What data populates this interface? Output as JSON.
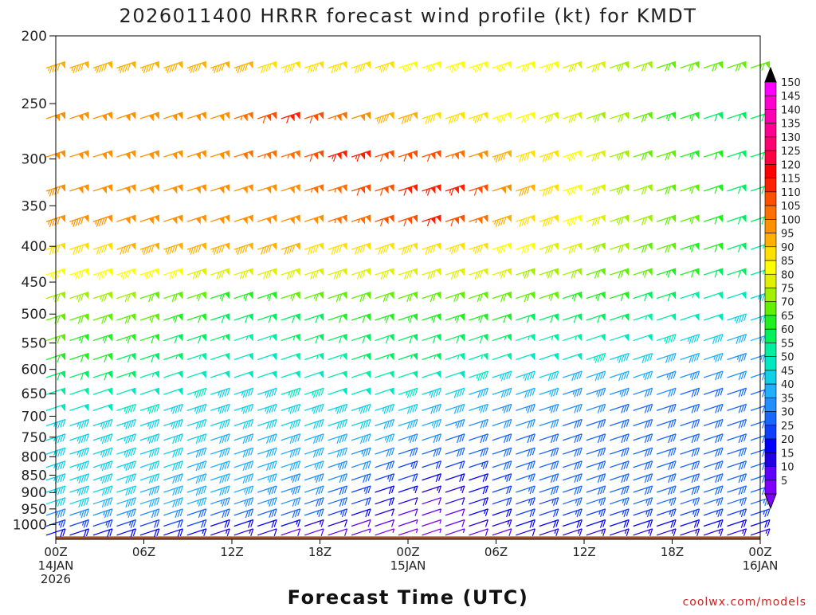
{
  "chart_data": {
    "type": "wind-barb-time-height",
    "title": "2026011400 HRRR forecast wind profile (kt) for KMDT",
    "xlabel": "Forecast Time (UTC)",
    "ylabel": "",
    "y_scale": "log-pressure",
    "ylim": [
      1050,
      200
    ],
    "y_ticks": [
      200,
      250,
      300,
      350,
      400,
      450,
      500,
      550,
      600,
      650,
      700,
      750,
      800,
      850,
      900,
      950,
      1000
    ],
    "x_range_hours": [
      0,
      48
    ],
    "x_ticks": [
      {
        "hour": 0,
        "lines": [
          "00Z",
          "14JAN",
          "2026"
        ]
      },
      {
        "hour": 6,
        "lines": [
          "06Z"
        ]
      },
      {
        "hour": 12,
        "lines": [
          "12Z"
        ]
      },
      {
        "hour": 18,
        "lines": [
          "18Z"
        ]
      },
      {
        "hour": 24,
        "lines": [
          "00Z",
          "15JAN"
        ]
      },
      {
        "hour": 30,
        "lines": [
          "06Z"
        ]
      },
      {
        "hour": 36,
        "lines": [
          "12Z"
        ]
      },
      {
        "hour": 42,
        "lines": [
          "18Z"
        ]
      },
      {
        "hour": 48,
        "lines": [
          "00Z",
          "16JAN"
        ]
      }
    ],
    "colorbar": {
      "levels": [
        5,
        10,
        15,
        20,
        25,
        30,
        35,
        40,
        45,
        50,
        55,
        60,
        65,
        70,
        75,
        80,
        85,
        90,
        95,
        100,
        105,
        110,
        115,
        120,
        125,
        130,
        135,
        140,
        145,
        150
      ],
      "colors": [
        "#8000ff",
        "#6000ff",
        "#2000e0",
        "#0000ff",
        "#1040ff",
        "#1868ff",
        "#2090ff",
        "#20b0ff",
        "#10d0e8",
        "#00e8c0",
        "#00f0a0",
        "#00f060",
        "#20f020",
        "#60f000",
        "#a0f000",
        "#e0f000",
        "#ffff00",
        "#ffe000",
        "#ffb000",
        "#ff9000",
        "#ff7000",
        "#ff5000",
        "#ff2000",
        "#ff0000",
        "#ff0040",
        "#ff0070",
        "#ff0090",
        "#ff00b0",
        "#ff00d0",
        "#ff00ff"
      ]
    },
    "surface_pressure_hpa": 1040,
    "surface_color": "#a0522d",
    "series": [
      {
        "pressure": 220,
        "speeds": [
          95,
          95,
          93,
          93,
          93,
          95,
          95,
          95,
          93,
          90,
          90,
          88,
          88,
          88,
          86,
          85,
          85,
          85,
          84,
          83,
          82,
          82,
          80,
          78,
          75,
          72,
          70,
          70,
          70,
          68,
          66
        ]
      },
      {
        "pressure": 260,
        "speeds": [
          100,
          100,
          100,
          100,
          100,
          100,
          100,
          100,
          103,
          108,
          112,
          110,
          105,
          100,
          95,
          92,
          90,
          90,
          86,
          85,
          82,
          80,
          80,
          75,
          72,
          68,
          65,
          65,
          60,
          60,
          60
        ]
      },
      {
        "pressure": 295,
        "speeds": [
          100,
          100,
          100,
          100,
          100,
          100,
          100,
          100,
          102,
          105,
          105,
          110,
          115,
          113,
          110,
          110,
          108,
          105,
          100,
          95,
          90,
          88,
          85,
          80,
          75,
          70,
          68,
          65,
          62,
          60,
          60
        ]
      },
      {
        "pressure": 330,
        "speeds": [
          96,
          98,
          98,
          100,
          100,
          100,
          100,
          100,
          100,
          100,
          100,
          104,
          105,
          108,
          110,
          112,
          115,
          115,
          110,
          100,
          92,
          88,
          85,
          80,
          75,
          72,
          70,
          66,
          62,
          60,
          60
        ]
      },
      {
        "pressure": 365,
        "speeds": [
          96,
          96,
          96,
          98,
          100,
          100,
          100,
          100,
          100,
          100,
          100,
          100,
          105,
          105,
          108,
          110,
          112,
          110,
          105,
          95,
          90,
          88,
          85,
          80,
          75,
          72,
          70,
          66,
          62,
          60,
          60
        ]
      },
      {
        "pressure": 400,
        "speeds": [
          90,
          90,
          90,
          92,
          94,
          95,
          95,
          94,
          93,
          92,
          92,
          90,
          90,
          88,
          88,
          88,
          88,
          86,
          86,
          84,
          82,
          80,
          78,
          75,
          72,
          70,
          68,
          65,
          62,
          60,
          55
        ]
      },
      {
        "pressure": 435,
        "speeds": [
          85,
          85,
          85,
          85,
          84,
          82,
          80,
          78,
          78,
          78,
          78,
          78,
          78,
          78,
          78,
          78,
          78,
          78,
          78,
          76,
          75,
          74,
          72,
          70,
          68,
          66,
          64,
          62,
          60,
          58,
          55
        ]
      },
      {
        "pressure": 470,
        "speeds": [
          75,
          75,
          74,
          72,
          70,
          68,
          66,
          65,
          65,
          65,
          66,
          67,
          68,
          70,
          70,
          70,
          70,
          70,
          70,
          70,
          68,
          66,
          65,
          65,
          62,
          60,
          58,
          55,
          52,
          48,
          45
        ]
      },
      {
        "pressure": 505,
        "speeds": [
          70,
          70,
          70,
          68,
          66,
          65,
          62,
          60,
          60,
          60,
          60,
          60,
          62,
          62,
          64,
          64,
          64,
          64,
          64,
          62,
          60,
          60,
          60,
          58,
          56,
          54,
          52,
          50,
          48,
          45,
          42
        ]
      },
      {
        "pressure": 540,
        "speeds": [
          66,
          65,
          65,
          64,
          62,
          60,
          58,
          56,
          55,
          55,
          56,
          58,
          58,
          60,
          60,
          60,
          60,
          60,
          58,
          56,
          55,
          55,
          55,
          52,
          50,
          48,
          46,
          44,
          42,
          40,
          38
        ]
      },
      {
        "pressure": 575,
        "speeds": [
          62,
          62,
          61,
          60,
          58,
          56,
          54,
          52,
          50,
          50,
          52,
          54,
          55,
          56,
          56,
          56,
          56,
          55,
          54,
          52,
          50,
          50,
          48,
          46,
          44,
          42,
          40,
          38,
          36,
          35,
          35
        ]
      },
      {
        "pressure": 610,
        "speeds": [
          58,
          58,
          58,
          56,
          54,
          52,
          50,
          48,
          48,
          48,
          50,
          50,
          52,
          52,
          52,
          52,
          50,
          48,
          46,
          45,
          44,
          42,
          40,
          40,
          38,
          36,
          35,
          35,
          32,
          32,
          32
        ]
      },
      {
        "pressure": 645,
        "speeds": [
          52,
          52,
          52,
          50,
          50,
          48,
          46,
          45,
          45,
          45,
          46,
          46,
          48,
          48,
          48,
          46,
          45,
          42,
          40,
          38,
          38,
          36,
          35,
          35,
          34,
          32,
          32,
          30,
          30,
          30,
          30
        ]
      },
      {
        "pressure": 680,
        "speeds": [
          48,
          48,
          48,
          47,
          46,
          45,
          44,
          44,
          44,
          44,
          44,
          44,
          45,
          45,
          44,
          42,
          40,
          38,
          36,
          35,
          34,
          33,
          32,
          32,
          30,
          30,
          30,
          30,
          30,
          30,
          30
        ]
      },
      {
        "pressure": 715,
        "speeds": [
          45,
          45,
          45,
          44,
          44,
          43,
          42,
          42,
          42,
          42,
          42,
          42,
          42,
          42,
          40,
          38,
          36,
          34,
          32,
          32,
          32,
          31,
          30,
          30,
          30,
          30,
          30,
          30,
          30,
          30,
          30
        ]
      },
      {
        "pressure": 750,
        "speeds": [
          45,
          45,
          44,
          44,
          43,
          42,
          42,
          40,
          40,
          40,
          40,
          40,
          40,
          38,
          36,
          34,
          32,
          30,
          30,
          30,
          30,
          30,
          30,
          30,
          30,
          30,
          30,
          30,
          30,
          30,
          30
        ]
      },
      {
        "pressure": 785,
        "speeds": [
          44,
          44,
          44,
          43,
          42,
          42,
          40,
          40,
          40,
          40,
          40,
          38,
          38,
          35,
          32,
          30,
          28,
          28,
          28,
          30,
          30,
          30,
          30,
          30,
          30,
          30,
          30,
          30,
          30,
          30,
          30
        ]
      },
      {
        "pressure": 820,
        "speeds": [
          44,
          44,
          44,
          43,
          42,
          42,
          40,
          40,
          40,
          38,
          38,
          36,
          35,
          32,
          28,
          25,
          22,
          22,
          25,
          28,
          28,
          28,
          30,
          30,
          30,
          30,
          30,
          30,
          30,
          30,
          30
        ]
      },
      {
        "pressure": 855,
        "speeds": [
          44,
          44,
          44,
          42,
          42,
          40,
          40,
          38,
          38,
          36,
          35,
          34,
          32,
          28,
          25,
          22,
          20,
          18,
          20,
          24,
          26,
          28,
          28,
          28,
          28,
          30,
          30,
          30,
          30,
          30,
          30
        ]
      },
      {
        "pressure": 890,
        "speeds": [
          44,
          44,
          42,
          42,
          40,
          40,
          38,
          38,
          36,
          35,
          35,
          32,
          30,
          25,
          20,
          16,
          14,
          14,
          18,
          22,
          26,
          28,
          28,
          28,
          28,
          28,
          28,
          30,
          30,
          30,
          30
        ]
      },
      {
        "pressure": 925,
        "speeds": [
          42,
          42,
          40,
          40,
          38,
          38,
          36,
          35,
          34,
          33,
          32,
          30,
          28,
          22,
          18,
          12,
          10,
          12,
          18,
          22,
          25,
          25,
          26,
          26,
          26,
          26,
          26,
          26,
          26,
          26,
          26
        ]
      },
      {
        "pressure": 960,
        "speeds": [
          35,
          35,
          34,
          33,
          32,
          32,
          30,
          30,
          30,
          28,
          28,
          26,
          24,
          18,
          12,
          8,
          6,
          10,
          16,
          20,
          22,
          22,
          24,
          24,
          24,
          24,
          24,
          24,
          24,
          24,
          24
        ]
      },
      {
        "pressure": 995,
        "speeds": [
          25,
          25,
          25,
          24,
          22,
          22,
          22,
          20,
          20,
          18,
          16,
          14,
          12,
          10,
          8,
          6,
          5,
          8,
          12,
          15,
          18,
          20,
          20,
          20,
          20,
          20,
          20,
          20,
          20,
          20,
          20
        ]
      },
      {
        "pressure": 1025,
        "speeds": [
          20,
          20,
          18,
          18,
          18,
          18,
          16,
          15,
          14,
          12,
          10,
          8,
          8,
          6,
          5,
          5,
          5,
          6,
          8,
          10,
          12,
          15,
          15,
          15,
          15,
          15,
          15,
          15,
          15,
          15,
          15
        ]
      }
    ],
    "series_time_start_hour": 0,
    "series_time_step_hours": 1.6
  },
  "credit": "coolwx.com/models"
}
